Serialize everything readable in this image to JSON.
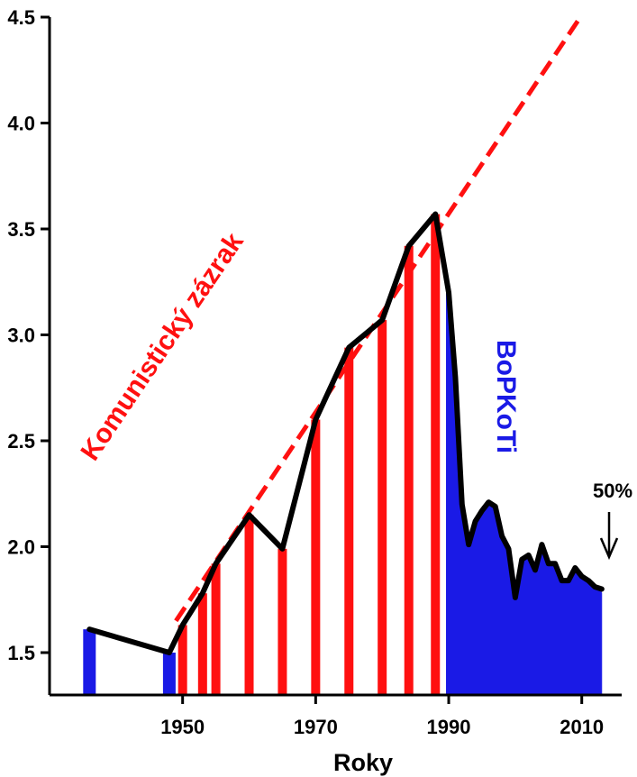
{
  "chart_data": {
    "type": "area",
    "title": "",
    "xlabel": "Roky",
    "ylabel": "",
    "xlim": [
      1930,
      2016
    ],
    "ylim": [
      1.3,
      4.5
    ],
    "x_ticks": [
      1950,
      1970,
      1990,
      2010
    ],
    "y_ticks": [
      1.5,
      2.0,
      2.5,
      3.0,
      3.5,
      4.0,
      4.5
    ],
    "y_tick_labels": [
      "1.5",
      "2.0",
      "2.5",
      "3.0",
      "3.5",
      "4.0",
      "4.5"
    ],
    "grid": false,
    "series": [
      {
        "x": [
          1936,
          1948,
          1950,
          1953,
          1955,
          1960,
          1965,
          1970,
          1975,
          1980,
          1984,
          1988,
          1990,
          1991,
          1992,
          1993,
          1994,
          1995,
          1996,
          1997,
          1998,
          1999,
          2000,
          2001,
          2002,
          2003,
          2004,
          2005,
          2006,
          2007,
          2008,
          2009,
          2010,
          2011,
          2012,
          2013
        ],
        "values": [
          1.61,
          1.5,
          1.63,
          1.78,
          1.92,
          2.15,
          1.99,
          2.6,
          2.94,
          3.07,
          3.42,
          3.57,
          3.2,
          2.8,
          2.2,
          2.01,
          2.12,
          2.17,
          2.21,
          2.19,
          2.05,
          1.99,
          1.76,
          1.94,
          1.96,
          1.89,
          2.01,
          1.92,
          1.92,
          1.84,
          1.84,
          1.9,
          1.86,
          1.84,
          1.81,
          1.8
        ]
      }
    ],
    "highlight_bars": {
      "blue_years": [
        1936,
        1948
      ],
      "red_years": [
        1950,
        1953,
        1955,
        1960,
        1965,
        1970,
        1975,
        1980,
        1984,
        1988
      ],
      "blue_fill_from_year": 1990
    },
    "trend_line": {
      "label": "Komunistický zázrak",
      "from": [
        1949,
        1.65
      ],
      "to": [
        2010,
        4.51
      ]
    },
    "annotations": {
      "boom_label": "Komunistický zázrak",
      "bust_label": "BoPKoTi",
      "percent_label": "50%"
    },
    "colors": {
      "line": "#000000",
      "red": "#ff1010",
      "blue": "#1a1ae6",
      "axis": "#000000"
    }
  }
}
